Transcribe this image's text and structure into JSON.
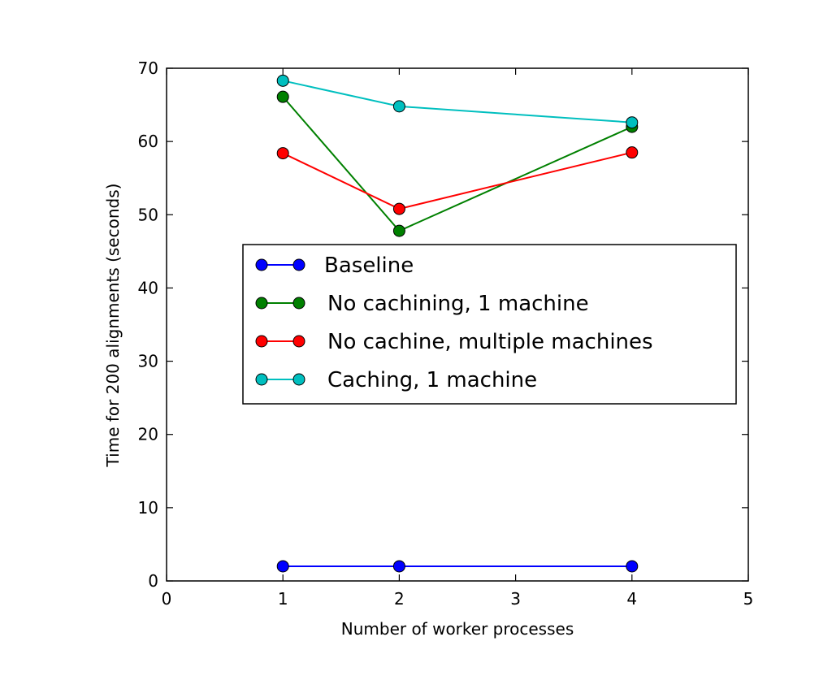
{
  "chart_data": {
    "type": "line",
    "title": "",
    "xlabel": "Number of worker processes",
    "ylabel": "Time for 200 alignments (seconds)",
    "xlim": [
      0,
      5
    ],
    "ylim": [
      0,
      70
    ],
    "xticks": [
      0,
      1,
      2,
      3,
      4,
      5
    ],
    "yticks": [
      0,
      10,
      20,
      30,
      40,
      50,
      60,
      70
    ],
    "grid": false,
    "legend_position": "center-right",
    "x": [
      1,
      2,
      4
    ],
    "series": [
      {
        "name": "Baseline",
        "color": "#0000ff",
        "values": [
          2.0,
          2.0,
          2.0
        ]
      },
      {
        "name": "No cachining, 1 machine",
        "color": "#008000",
        "values": [
          66.1,
          47.8,
          62.0
        ]
      },
      {
        "name": "No cachine, multiple machines",
        "color": "#ff0000",
        "values": [
          58.4,
          50.8,
          58.5
        ]
      },
      {
        "name": "Caching, 1 machine",
        "color": "#00bfbf",
        "values": [
          68.3,
          64.8,
          62.6
        ]
      }
    ]
  }
}
